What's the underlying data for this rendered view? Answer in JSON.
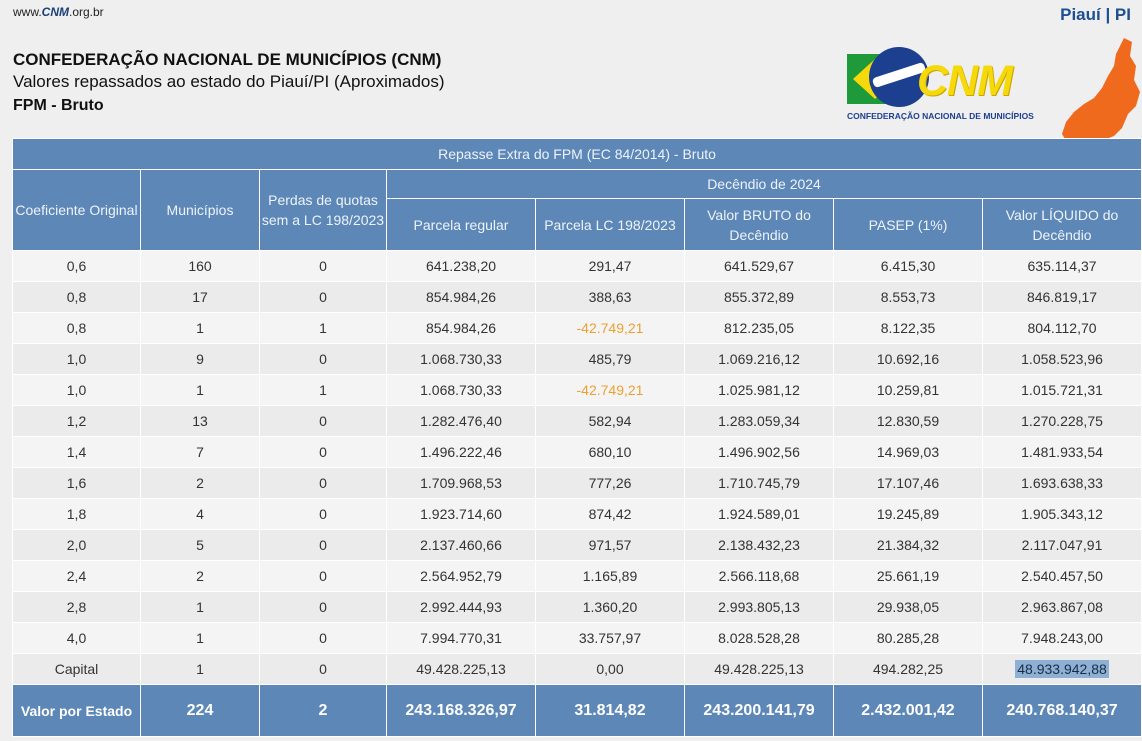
{
  "site": {
    "prefix": "www.",
    "brand": "CNM",
    "suffix": ".org.br"
  },
  "state_tag": "Piauí | PI",
  "header": {
    "org": "CONFEDERAÇÃO NACIONAL DE MUNICÍPIOS (CNM)",
    "subtitle": "Valores repassados ao estado do Piauí/PI (Aproximados)",
    "fund": "FPM - Bruto"
  },
  "logo": {
    "text": "CNM",
    "subtitle": "CONFEDERAÇÃO NACIONAL DE MUNICÍPIOS"
  },
  "colors": {
    "header_blue": "#5c87b6",
    "negative": "#f0a030",
    "map_orange": "#f06a1e"
  },
  "table": {
    "caption": "Repasse Extra do FPM (EC 84/2014) - Bruto",
    "group_header": "Decêndio de 2024",
    "columns": {
      "coef": "Coeficiente Original",
      "municipios": "Municípios",
      "perdas": "Perdas de quotas sem a LC 198/2023",
      "parcela_regular": "Parcela regular",
      "parcela_lc": "Parcela LC 198/2023",
      "bruto": "Valor BRUTO do Decêndio",
      "pasep": "PASEP (1%)",
      "liquido": "Valor LÍQUIDO do Decêndio"
    },
    "rows": [
      {
        "coef": "0,6",
        "municipios": "160",
        "perdas": "0",
        "regular": "641.238,20",
        "lc": "291,47",
        "bruto": "641.529,67",
        "pasep": "6.415,30",
        "liquido": "635.114,37"
      },
      {
        "coef": "0,8",
        "municipios": "17",
        "perdas": "0",
        "regular": "854.984,26",
        "lc": "388,63",
        "bruto": "855.372,89",
        "pasep": "8.553,73",
        "liquido": "846.819,17"
      },
      {
        "coef": "0,8",
        "municipios": "1",
        "perdas": "1",
        "regular": "854.984,26",
        "lc": "-42.749,21",
        "bruto": "812.235,05",
        "pasep": "8.122,35",
        "liquido": "804.112,70"
      },
      {
        "coef": "1,0",
        "municipios": "9",
        "perdas": "0",
        "regular": "1.068.730,33",
        "lc": "485,79",
        "bruto": "1.069.216,12",
        "pasep": "10.692,16",
        "liquido": "1.058.523,96"
      },
      {
        "coef": "1,0",
        "municipios": "1",
        "perdas": "1",
        "regular": "1.068.730,33",
        "lc": "-42.749,21",
        "bruto": "1.025.981,12",
        "pasep": "10.259,81",
        "liquido": "1.015.721,31"
      },
      {
        "coef": "1,2",
        "municipios": "13",
        "perdas": "0",
        "regular": "1.282.476,40",
        "lc": "582,94",
        "bruto": "1.283.059,34",
        "pasep": "12.830,59",
        "liquido": "1.270.228,75"
      },
      {
        "coef": "1,4",
        "municipios": "7",
        "perdas": "0",
        "regular": "1.496.222,46",
        "lc": "680,10",
        "bruto": "1.496.902,56",
        "pasep": "14.969,03",
        "liquido": "1.481.933,54"
      },
      {
        "coef": "1,6",
        "municipios": "2",
        "perdas": "0",
        "regular": "1.709.968,53",
        "lc": "777,26",
        "bruto": "1.710.745,79",
        "pasep": "17.107,46",
        "liquido": "1.693.638,33"
      },
      {
        "coef": "1,8",
        "municipios": "4",
        "perdas": "0",
        "regular": "1.923.714,60",
        "lc": "874,42",
        "bruto": "1.924.589,01",
        "pasep": "19.245,89",
        "liquido": "1.905.343,12"
      },
      {
        "coef": "2,0",
        "municipios": "5",
        "perdas": "0",
        "regular": "2.137.460,66",
        "lc": "971,57",
        "bruto": "2.138.432,23",
        "pasep": "21.384,32",
        "liquido": "2.117.047,91"
      },
      {
        "coef": "2,4",
        "municipios": "2",
        "perdas": "0",
        "regular": "2.564.952,79",
        "lc": "1.165,89",
        "bruto": "2.566.118,68",
        "pasep": "25.661,19",
        "liquido": "2.540.457,50"
      },
      {
        "coef": "2,8",
        "municipios": "1",
        "perdas": "0",
        "regular": "2.992.444,93",
        "lc": "1.360,20",
        "bruto": "2.993.805,13",
        "pasep": "29.938,05",
        "liquido": "2.963.867,08"
      },
      {
        "coef": "4,0",
        "municipios": "1",
        "perdas": "0",
        "regular": "7.994.770,31",
        "lc": "33.757,97",
        "bruto": "8.028.528,28",
        "pasep": "80.285,28",
        "liquido": "7.948.243,00"
      },
      {
        "coef": "Capital",
        "municipios": "1",
        "perdas": "0",
        "regular": "49.428.225,13",
        "lc": "0,00",
        "bruto": "49.428.225,13",
        "pasep": "494.282,25",
        "liquido": "48.933.942,88"
      }
    ],
    "total": {
      "label": "Valor por Estado",
      "municipios": "224",
      "perdas": "2",
      "regular": "243.168.326,97",
      "lc": "31.814,82",
      "bruto": "243.200.141,79",
      "pasep": "2.432.001,42",
      "liquido": "240.768.140,37"
    }
  }
}
